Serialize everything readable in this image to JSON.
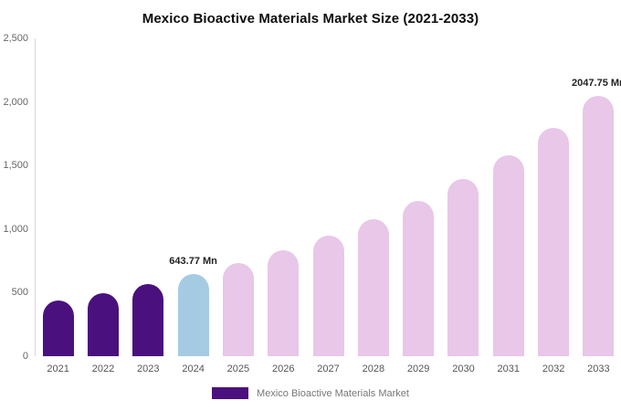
{
  "page": {
    "background": "#ffffff"
  },
  "chart_data": {
    "type": "bar",
    "title": "Mexico Bioactive Materials Market Size (2021-2033)",
    "categories": [
      "2021",
      "2022",
      "2023",
      "2024",
      "2025",
      "2026",
      "2027",
      "2028",
      "2029",
      "2030",
      "2031",
      "2032",
      "2033"
    ],
    "values": [
      438,
      498,
      566,
      643.77,
      732,
      832,
      946,
      1076,
      1223,
      1391,
      1582,
      1799,
      2047.75
    ],
    "unit": "Mn",
    "ylim": [
      0,
      2500
    ],
    "ytick_values": [
      0,
      500,
      1000,
      1500,
      2000,
      2500
    ],
    "ytick_labels": [
      "0",
      "500",
      "1,000",
      "1,500",
      "2,000",
      "2,500"
    ],
    "grid": false,
    "bar_colors": [
      "#4A117E",
      "#4A117E",
      "#4A117E",
      "#A5CBE2",
      "#E8C7E8",
      "#E8C7E8",
      "#E8C7E8",
      "#E8C7E8",
      "#E8C7E8",
      "#E8C7E8",
      "#E8C7E8",
      "#E8C7E8",
      "#E8C7E8"
    ],
    "annotations": [
      {
        "category": "2024",
        "text": "643.77 Mn"
      },
      {
        "category": "2033",
        "text": "2047.75 Mn"
      }
    ],
    "legend": {
      "position": "bottom",
      "label": "Mexico Bioactive Materials Market",
      "swatch_color": "#4A117E"
    }
  }
}
